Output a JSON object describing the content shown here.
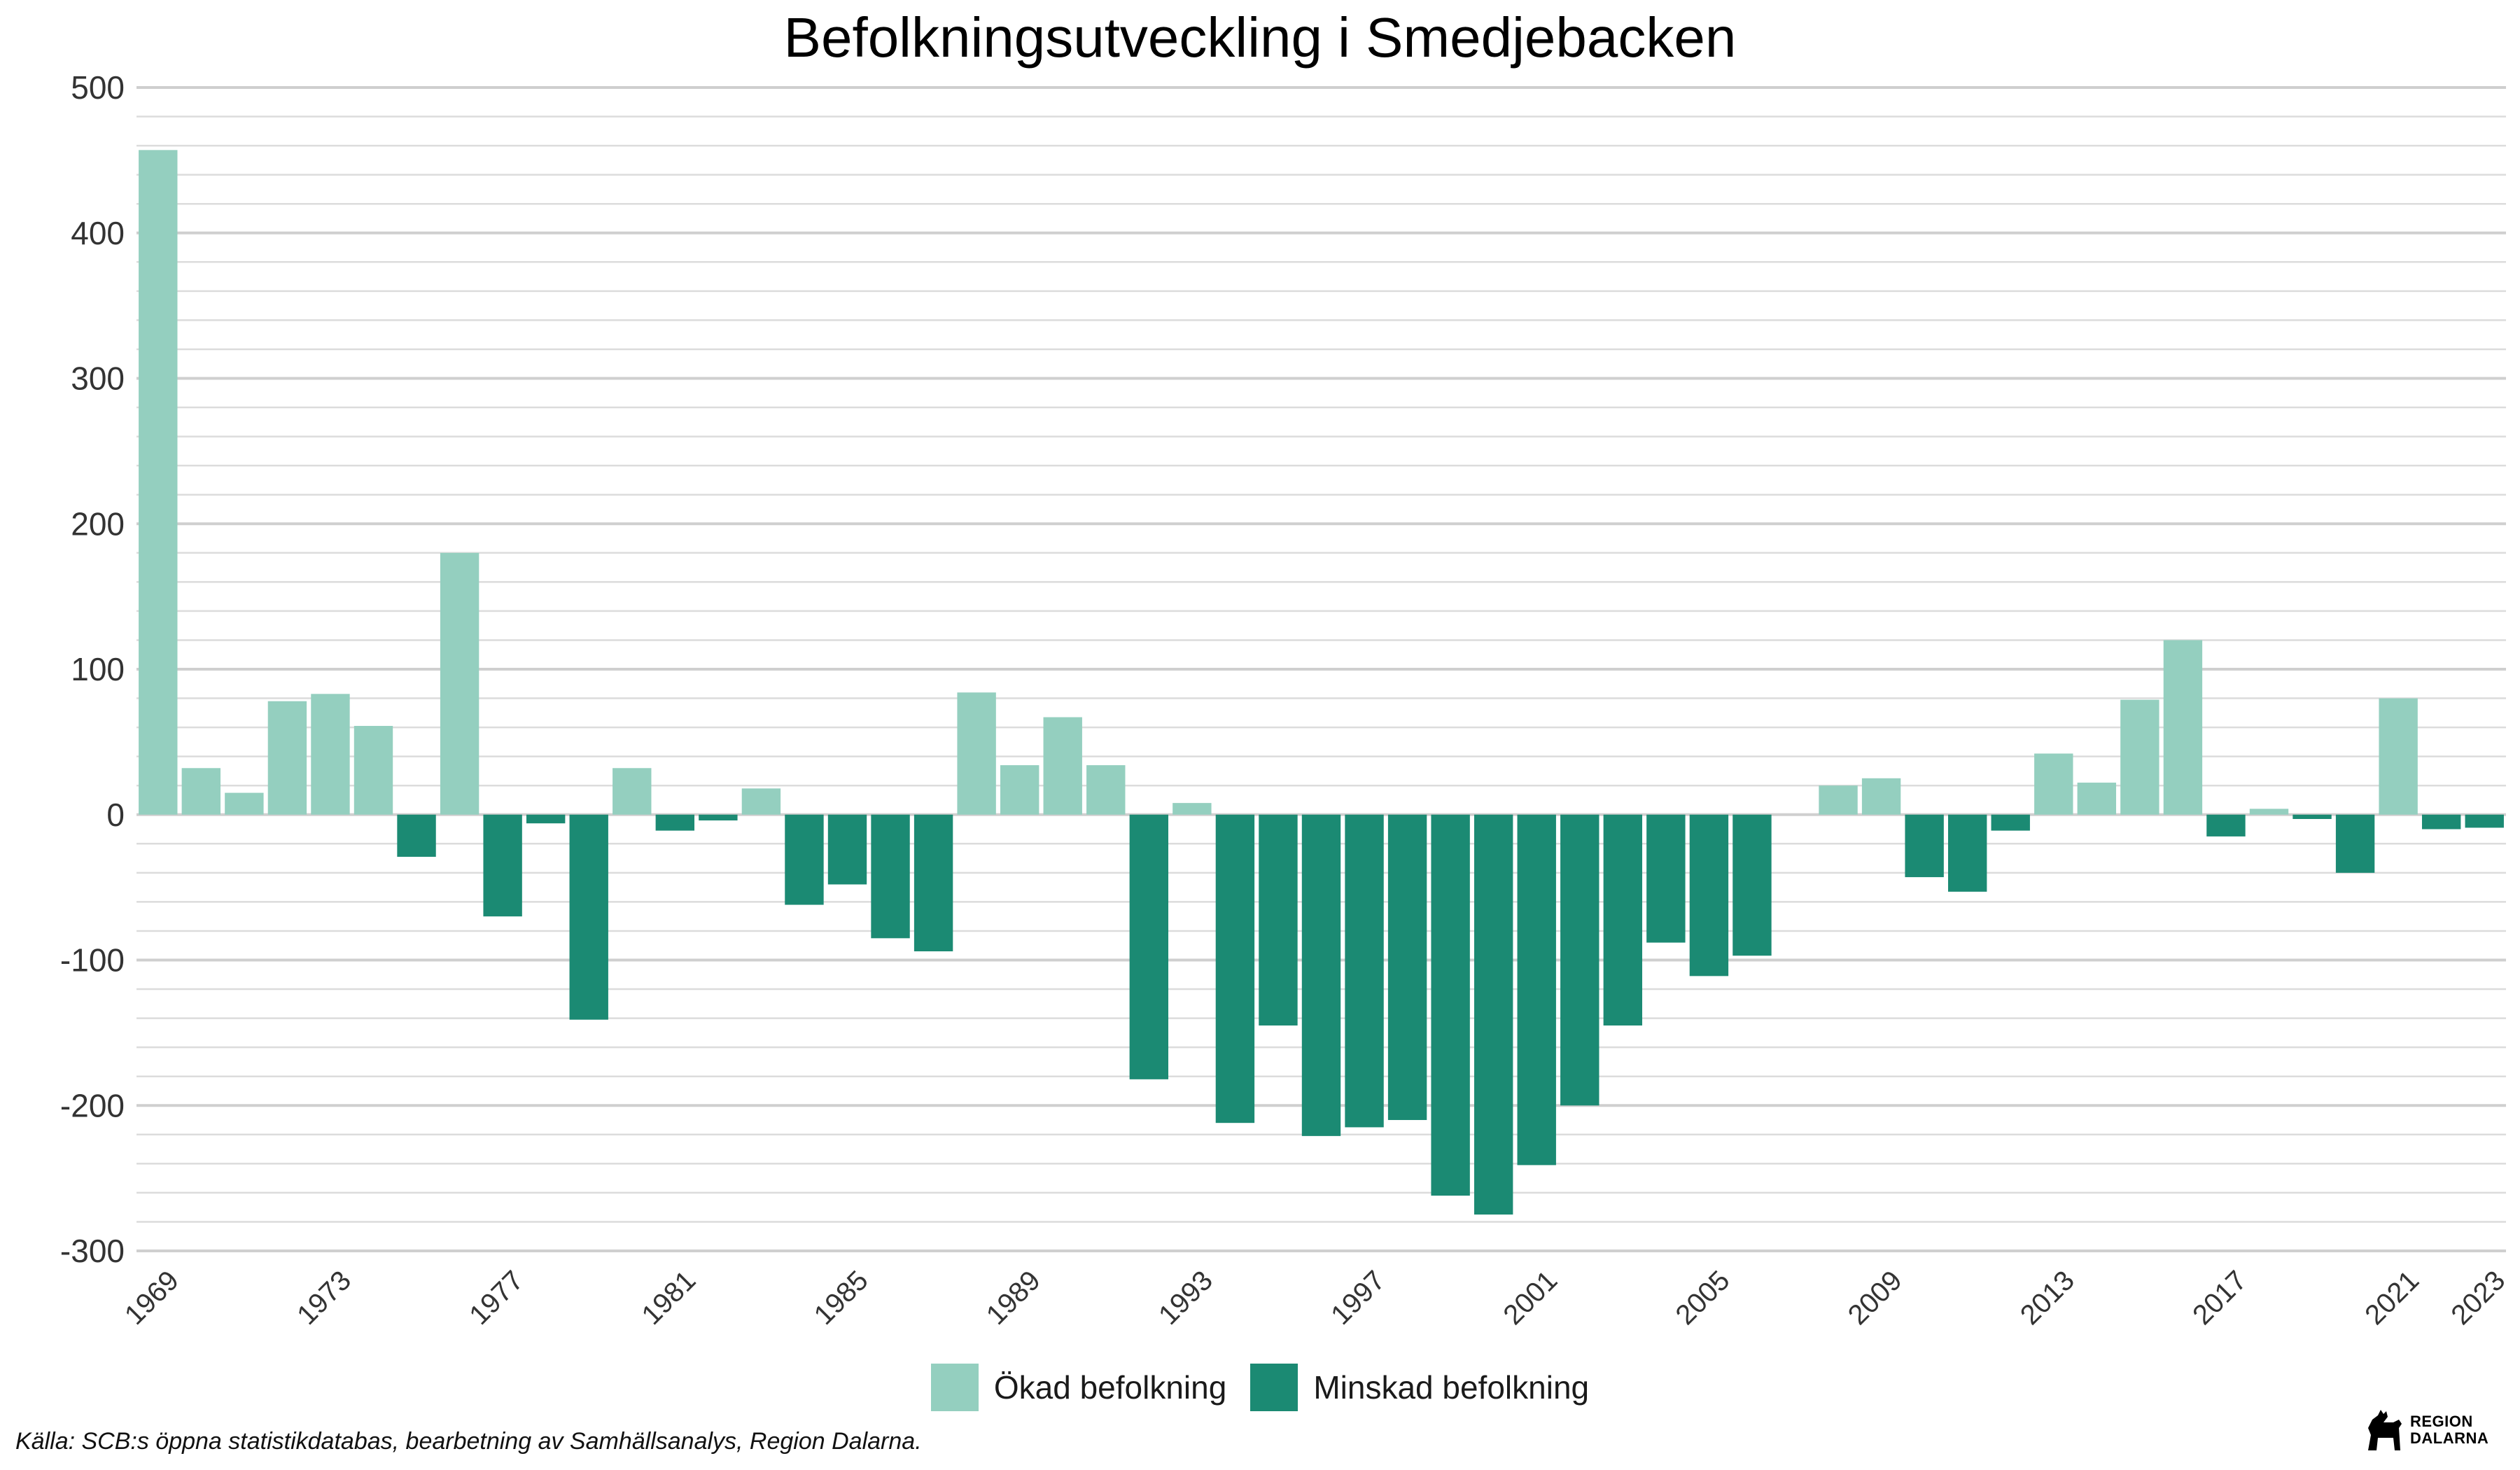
{
  "chart_data": {
    "type": "bar",
    "title": "Befolkningsutveckling i Smedjebacken",
    "xlabel": "",
    "ylabel": "",
    "ylim": [
      -300,
      500
    ],
    "y_ticks": [
      "500",
      "400",
      "300",
      "200",
      "100",
      "0",
      "-100",
      "-200",
      "-300"
    ],
    "x_tick_labels": [
      "1969",
      "1973",
      "1977",
      "1981",
      "1985",
      "1989",
      "1993",
      "1997",
      "2001",
      "2005",
      "2009",
      "2013",
      "2017",
      "2021",
      "2023"
    ],
    "grid": true,
    "legend_position": "bottom",
    "x": [
      1969,
      1970,
      1971,
      1972,
      1973,
      1974,
      1975,
      1976,
      1977,
      1978,
      1979,
      1980,
      1981,
      1982,
      1983,
      1984,
      1985,
      1986,
      1987,
      1988,
      1989,
      1990,
      1991,
      1992,
      1993,
      1994,
      1995,
      1996,
      1997,
      1998,
      1999,
      2000,
      2001,
      2002,
      2003,
      2004,
      2005,
      2006,
      2007,
      2008,
      2009,
      2010,
      2011,
      2012,
      2013,
      2014,
      2015,
      2016,
      2017,
      2018,
      2019,
      2020,
      2021,
      2022,
      2023
    ],
    "values": [
      457,
      32,
      15,
      78,
      83,
      61,
      -29,
      180,
      -70,
      -6,
      -141,
      32,
      -11,
      -4,
      18,
      -62,
      -48,
      -85,
      -94,
      84,
      34,
      67,
      34,
      -182,
      8,
      -212,
      -145,
      -221,
      -215,
      -210,
      -262,
      -275,
      -241,
      -200,
      -145,
      -88,
      -111,
      -97,
      0,
      20,
      25,
      -43,
      -53,
      -11,
      42,
      22,
      79,
      120,
      -15,
      4,
      -3,
      -40,
      80,
      -10,
      -9
    ],
    "legend": [
      {
        "label": "Ökad befolkning",
        "color": "#94cfbf"
      },
      {
        "label": "Minskad befolkning",
        "color": "#1b8a73"
      }
    ]
  },
  "source_note": "Källa: SCB:s öppna statistikdatabas, bearbetning av Samhällsanalys, Region Dalarna.",
  "logo": {
    "line1": "REGION",
    "line2": "DALARNA",
    "icon": "dala-horse-icon"
  }
}
